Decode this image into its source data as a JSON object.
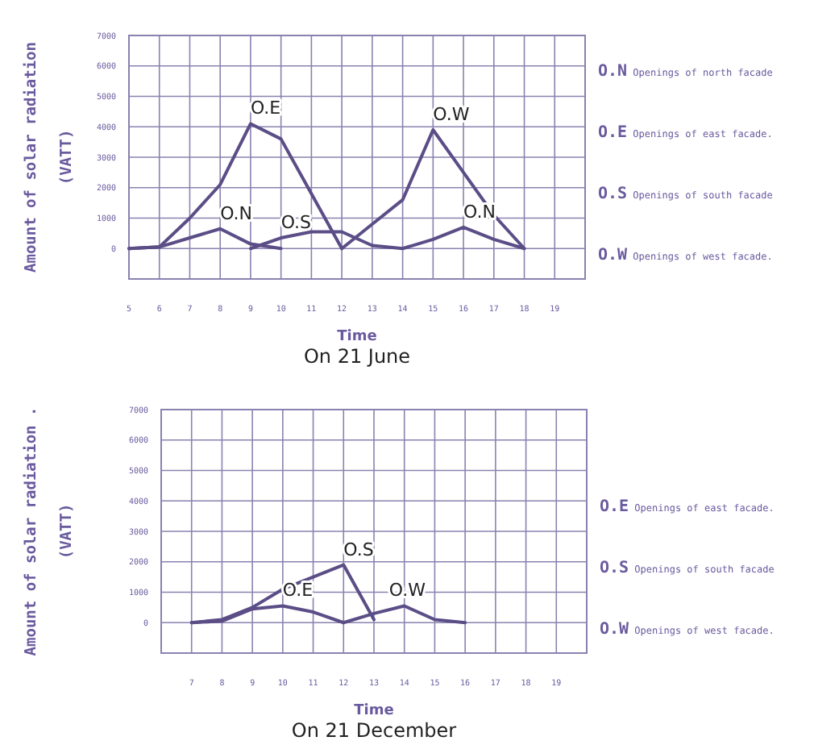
{
  "chart_data": [
    {
      "type": "line",
      "title": "On 21 June",
      "xlabel": "Time",
      "ylabel": "Amount of solar radiation\n(VATT)",
      "xlim": [
        5,
        20
      ],
      "xticks": [
        5,
        6,
        7,
        8,
        9,
        10,
        11,
        12,
        13,
        14,
        15,
        16,
        17,
        18,
        19
      ],
      "ylim": [
        -1000,
        7000
      ],
      "yticks": [
        0,
        1000,
        2000,
        3000,
        4000,
        5000,
        6000,
        7000
      ],
      "grid": true,
      "series": [
        {
          "color": "#5b4d86",
          "x": [
            5,
            6,
            7,
            8,
            9,
            10,
            11,
            12
          ],
          "values": [
            0,
            50,
            1000,
            2100,
            4100,
            3600,
            1800,
            0
          ]
        },
        {
          "color": "#5b4d86",
          "x": [
            12,
            13,
            14,
            15,
            16,
            17,
            18
          ],
          "values": [
            0,
            800,
            1600,
            3900,
            2500,
            1100,
            0
          ]
        },
        {
          "color": "#5b4d86",
          "x": [
            5,
            6,
            7,
            8,
            9,
            10,
            11,
            12,
            13,
            14,
            15,
            16,
            17,
            18
          ],
          "values": [
            0,
            50,
            350,
            650,
            150,
            0,
            null,
            null,
            100,
            0,
            300,
            700,
            300,
            0
          ]
        },
        {
          "color": "#5b4d86",
          "x": [
            9,
            10,
            11,
            12,
            13
          ],
          "values": [
            0,
            350,
            550,
            550,
            100
          ]
        }
      ],
      "annotations": [
        {
          "text": "O.E",
          "x": 9,
          "y": 4100
        },
        {
          "text": "O.W",
          "x": 15,
          "y": 3900
        },
        {
          "text": "O.N",
          "x": 8,
          "y": 650
        },
        {
          "text": "O.S",
          "x": 10,
          "y": 350
        },
        {
          "text": "O.N",
          "x": 16,
          "y": 700
        },
        "O.N Openings of north facade",
        "O.E Openings of east facade.",
        "O.S Openings of south facade",
        "O.W Openings of west facade."
      ]
    },
    {
      "type": "line",
      "title": "On 21 December",
      "xlabel": "Time",
      "ylabel": "Amount of solar radiation .\n(VATT)",
      "xlim": [
        6,
        20
      ],
      "xticks": [
        7,
        8,
        9,
        10,
        11,
        12,
        13,
        14,
        15,
        16,
        17,
        18,
        19
      ],
      "ylim": [
        -1000,
        7000
      ],
      "yticks": [
        0,
        1000,
        2000,
        3000,
        4000,
        5000,
        6000,
        7000
      ],
      "grid": true,
      "series": [
        {
          "color": "#5b4d86",
          "x": [
            7,
            8,
            9,
            10,
            11,
            12,
            13
          ],
          "values": [
            0,
            100,
            500,
            1100,
            1500,
            1900,
            100
          ]
        },
        {
          "color": "#5b4d86",
          "x": [
            7,
            8,
            9,
            10,
            11,
            12
          ],
          "values": [
            0,
            50,
            450,
            550,
            350,
            0
          ]
        },
        {
          "color": "#5b4d86",
          "x": [
            12,
            13,
            14,
            15,
            16
          ],
          "values": [
            0,
            300,
            550,
            100,
            0
          ]
        }
      ],
      "annotations": [
        {
          "text": "O.S",
          "x": 12,
          "y": 1900
        },
        {
          "text": "O.E",
          "x": 10,
          "y": 550
        },
        {
          "text": "O.W",
          "x": 13.5,
          "y": 550
        },
        "O.E Openings of east facade.",
        "O.S Openings of south facade",
        "O.W Openings of west facade."
      ]
    }
  ]
}
